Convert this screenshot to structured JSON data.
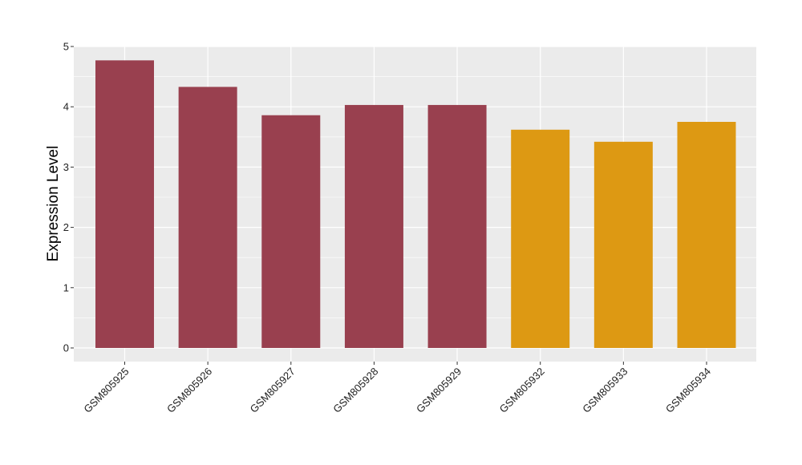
{
  "chart_data": {
    "type": "bar",
    "title": "",
    "xlabel": "",
    "ylabel": "Expression Level",
    "ylim": [
      -0.22,
      5
    ],
    "yticks": [
      0,
      1,
      2,
      3,
      4,
      5
    ],
    "grid": true,
    "legend": "none",
    "panel_background": "#EBEBEB",
    "categories": [
      "GSM805925",
      "GSM805926",
      "GSM805927",
      "GSM805928",
      "GSM805929",
      "GSM805932",
      "GSM805933",
      "GSM805934"
    ],
    "values": [
      4.77,
      4.33,
      3.86,
      4.03,
      4.03,
      3.62,
      3.42,
      3.75
    ],
    "colors": [
      "#99404F",
      "#99404F",
      "#99404F",
      "#99404F",
      "#99404F",
      "#DD9913",
      "#DD9913",
      "#DD9913"
    ]
  }
}
